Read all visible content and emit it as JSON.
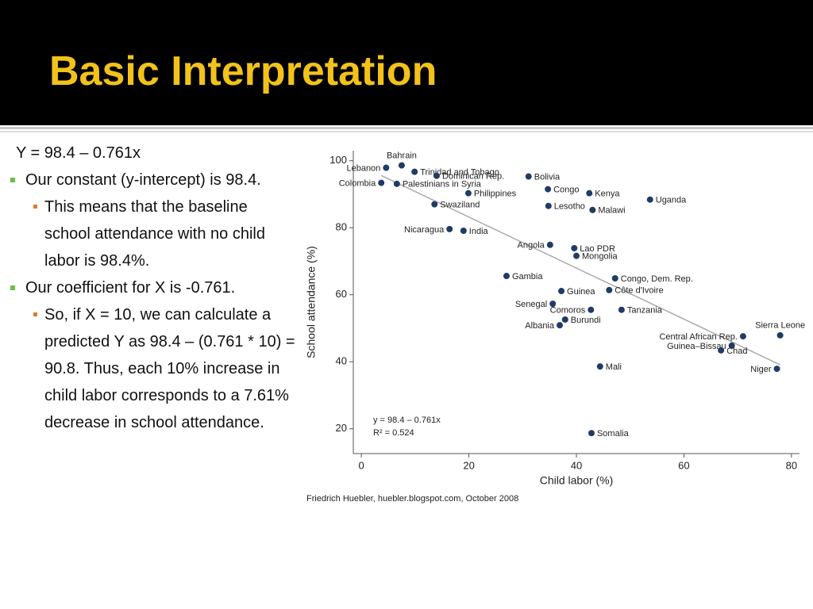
{
  "header": {
    "title": "Basic Interpretation"
  },
  "body": {
    "equation": "Y = 98.4 – 0.761x",
    "bullets": [
      {
        "text": "Our constant (y-intercept) is 98.4.",
        "sub": [
          "This means that the baseline school attendance with no child labor is 98.4%."
        ]
      },
      {
        "text": "Our coefficient for X is -0.761.",
        "sub": [
          "So, if X = 10, we can calculate a predicted Y as 98.4 – (0.761 * 10) = 90.8. Thus, each 10% increase in child labor corresponds to a 7.61% decrease in school attendance."
        ]
      }
    ]
  },
  "chart_data": {
    "type": "scatter",
    "x_label": "Child labor (%)",
    "y_label": "School attendance (%)",
    "source": "Friedrich Huebler, huebler.blogspot.com, October 2008",
    "annotations": [
      "y = 98.4 – 0.761x",
      "R² = 0.524"
    ],
    "color": "#1f3b66",
    "labels": [
      "Bahrain",
      "Trinidad and Tobago",
      "Lebanon",
      "Dominican Rep.",
      "Palestinians in Syria",
      "Colombia",
      "Bolivia",
      "Congo",
      "Kenya",
      "Philippines",
      "Uganda",
      "Swaziland",
      "Lesotho",
      "Malawi",
      "Nicaragua",
      "India",
      "Angola",
      "Lao PDR",
      "Mongolia",
      "Gambia",
      "Congo, Dem. Rep.",
      "Guinea",
      "Côte d'Ivoire",
      "Senegal",
      "Comoros",
      "Tanzania",
      "Burundi",
      "Albania",
      "Central African Rep.",
      "Sierra Leone",
      "Guinea–Bissau",
      "Chad",
      "Mali",
      "Niger",
      "Somalia"
    ],
    "x": [
      7.5,
      9.9,
      4.6,
      14.0,
      6.6,
      3.7,
      31.1,
      34.7,
      42.4,
      19.9,
      53.7,
      13.6,
      34.8,
      43.0,
      16.4,
      19.0,
      35.1,
      39.6,
      40.0,
      27.0,
      47.2,
      37.2,
      46.1,
      35.6,
      42.7,
      48.4,
      37.9,
      36.9,
      71.0,
      77.9,
      68.9,
      66.9,
      44.4,
      77.3,
      42.8
    ],
    "y": [
      98.6,
      96.7,
      97.9,
      95.5,
      93.1,
      93.4,
      95.3,
      91.5,
      90.3,
      90.3,
      88.4,
      87.0,
      86.5,
      85.3,
      79.6,
      79.1,
      74.9,
      73.9,
      71.6,
      65.6,
      64.9,
      61.1,
      61.4,
      57.3,
      55.5,
      55.5,
      52.6,
      50.9,
      47.6,
      47.9,
      44.8,
      43.4,
      38.6,
      37.9,
      18.7
    ],
    "trend_line": {
      "x": [
        3.7,
        77.9
      ],
      "y": [
        95.6,
        39.1
      ]
    },
    "xlim": [
      -1.5,
      81.5
    ],
    "ylim": [
      12.6,
      103
    ],
    "xticks": [
      0,
      20,
      40,
      60,
      80
    ],
    "yticks": [
      20,
      40,
      60,
      80,
      100
    ]
  }
}
